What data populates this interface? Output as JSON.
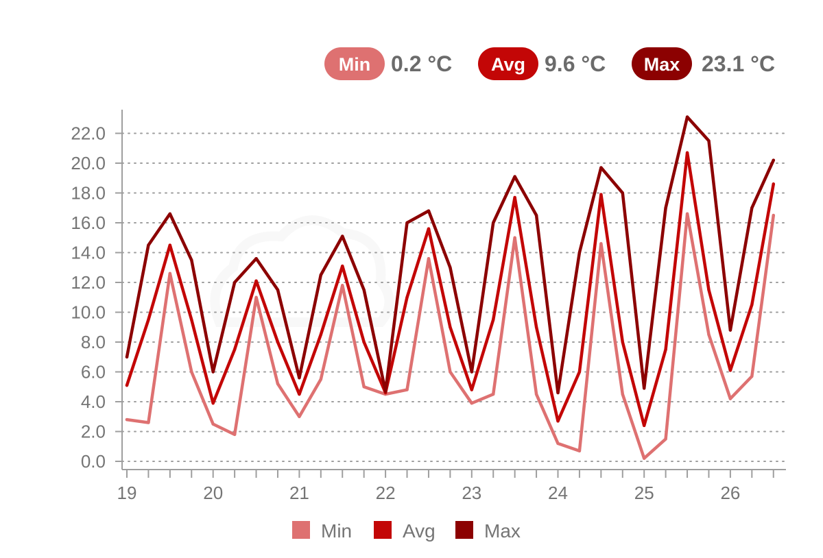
{
  "colors": {
    "min": "#de7171",
    "avg": "#c30606",
    "max": "#8c0101",
    "grid": "#9e9e9e",
    "axis": "#9e9e9e",
    "text": "#6b6b6b"
  },
  "summary": [
    {
      "key": "min",
      "badge": "Min",
      "value": "0.2 °C"
    },
    {
      "key": "avg",
      "badge": "Avg",
      "value": "9.6 °C"
    },
    {
      "key": "max",
      "badge": "Max",
      "value": "23.1 °C"
    }
  ],
  "legend": [
    {
      "key": "min",
      "label": "Min"
    },
    {
      "key": "avg",
      "label": "Avg"
    },
    {
      "key": "max",
      "label": "Max"
    }
  ],
  "chart_data": {
    "type": "line",
    "title": "",
    "xlabel": "",
    "ylabel": "",
    "xlim": [
      18.97,
      26.53
    ],
    "ylim": [
      -0.6,
      24.2
    ],
    "grid": true,
    "legend_position": "bottom",
    "x_ticks": [
      19,
      20,
      21,
      22,
      23,
      24,
      25,
      26
    ],
    "x_tick_labels": [
      "19",
      "20",
      "21",
      "22",
      "23",
      "24",
      "25",
      "26"
    ],
    "y_ticks": [
      0,
      2,
      4,
      6,
      8,
      10,
      12,
      14,
      16,
      18,
      20,
      22
    ],
    "y_tick_labels": [
      "0.0",
      "2.0",
      "4.0",
      "6.0",
      "8.0",
      "10.0",
      "12.0",
      "14.0",
      "16.0",
      "18.0",
      "20.0",
      "22.0"
    ],
    "x": [
      19.0,
      19.25,
      19.5,
      19.75,
      20.0,
      20.25,
      20.5,
      20.75,
      21.0,
      21.25,
      21.5,
      21.75,
      22.0,
      22.25,
      22.5,
      22.75,
      23.0,
      23.25,
      23.5,
      23.75,
      24.0,
      24.25,
      24.5,
      24.75,
      25.0,
      25.25,
      25.5,
      25.75,
      26.0,
      26.25,
      26.5
    ],
    "series": [
      {
        "name": "Min",
        "color_key": "min",
        "values": [
          2.8,
          2.6,
          12.6,
          6.0,
          2.5,
          1.8,
          11.0,
          5.2,
          3.0,
          5.5,
          11.8,
          5.0,
          4.5,
          4.8,
          13.6,
          6.0,
          3.9,
          4.5,
          15.0,
          4.5,
          1.2,
          0.7,
          14.6,
          4.5,
          0.2,
          1.5,
          16.6,
          8.5,
          4.2,
          5.7,
          16.5
        ]
      },
      {
        "name": "Avg",
        "color_key": "avg",
        "values": [
          5.1,
          9.5,
          14.5,
          9.5,
          3.9,
          7.5,
          12.1,
          8.0,
          4.5,
          8.5,
          13.1,
          8.0,
          4.6,
          11.0,
          15.6,
          9.0,
          4.8,
          9.5,
          17.7,
          9.0,
          2.7,
          6.0,
          17.9,
          8.0,
          2.4,
          7.5,
          20.7,
          11.5,
          6.1,
          10.5,
          18.6
        ]
      },
      {
        "name": "Max",
        "color_key": "max",
        "values": [
          7.0,
          14.5,
          16.6,
          13.5,
          6.0,
          12.0,
          13.6,
          11.5,
          5.6,
          12.5,
          15.1,
          11.5,
          4.7,
          16.0,
          16.8,
          13.0,
          6.0,
          16.0,
          19.1,
          16.5,
          4.6,
          14.0,
          19.7,
          18.0,
          4.9,
          17.0,
          23.1,
          21.5,
          8.8,
          17.0,
          20.2
        ]
      }
    ]
  }
}
